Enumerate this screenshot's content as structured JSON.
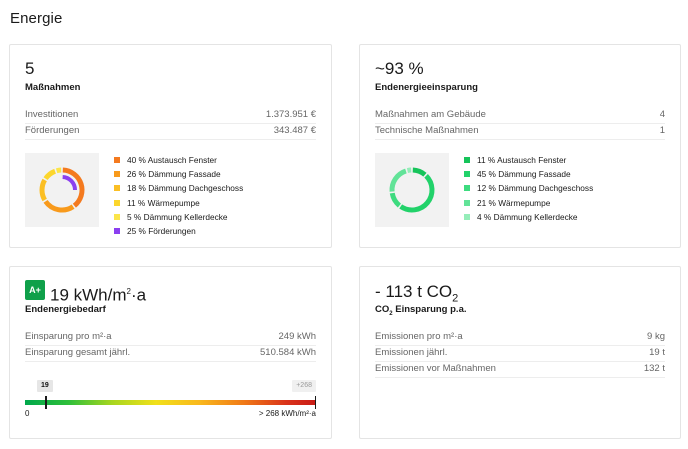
{
  "page": {
    "title": "Energie"
  },
  "measures": {
    "value": "5",
    "label": "Maßnahmen",
    "rows": [
      {
        "label": "Investitionen",
        "value": "1.373.951 €"
      },
      {
        "label": "Förderungen",
        "value": "343.487 €"
      }
    ],
    "legend": [
      {
        "text": "40 % Austausch Fenster",
        "color": "#f47a1f",
        "pct": 40
      },
      {
        "text": "26 % Dämmung Fassade",
        "color": "#f89a1c",
        "pct": 26
      },
      {
        "text": "18 % Dämmung Dachgeschoss",
        "color": "#fbbf24",
        "pct": 18
      },
      {
        "text": "11 % Wärmepumpe",
        "color": "#fcd62c",
        "pct": 11
      },
      {
        "text": "5 % Dämmung Kellerdecke",
        "color": "#fbe54a",
        "pct": 5
      },
      {
        "text": "25 % Förderungen",
        "color": "#8b3ff0",
        "pct": 25
      }
    ]
  },
  "savings": {
    "value": "~93 %",
    "label": "Endenergieeinsparung",
    "rows": [
      {
        "label": "Maßnahmen am Gebäude",
        "value": "4"
      },
      {
        "label": "Technische Maßnahmen",
        "value": "1"
      }
    ],
    "legend": [
      {
        "text": "11 % Austausch Fenster",
        "color": "#16c45a",
        "pct": 11
      },
      {
        "text": "45 % Dämmung Fassade",
        "color": "#22d26a",
        "pct": 45
      },
      {
        "text": "12 % Dämmung Dachgeschoss",
        "color": "#3ddb7f",
        "pct": 12
      },
      {
        "text": "21 % Wärmepumpe",
        "color": "#62e398",
        "pct": 21
      },
      {
        "text": "4 % Dämmung Kellerdecke",
        "color": "#95edb9",
        "pct": 4
      }
    ]
  },
  "demand": {
    "badge": "A+",
    "value": "19 kWh/m",
    "value_sup": "2",
    "value_suffix": "·a",
    "label": "Endenergiebedarf",
    "rows": [
      {
        "label": "Einsparung pro m²·a",
        "value": "249 kWh"
      },
      {
        "label": "Einsparung gesamt jährl.",
        "value": "510.584 kWh"
      }
    ],
    "scale": {
      "current": 19,
      "current_label": "19",
      "max_label": "+268",
      "min_text": "0",
      "max_text": "> 268 kWh/m²·a",
      "max": 268
    }
  },
  "co2": {
    "value": "- 113 t CO",
    "value_sub": "2",
    "label_prefix": "CO",
    "label_sub": "2",
    "label_suffix": " Einsparung p.a.",
    "rows": [
      {
        "label": "Emissionen pro m²·a",
        "value": "9 kg"
      },
      {
        "label": "Emissionen jährl.",
        "value": "19 t"
      },
      {
        "label": "Emissionen vor Maßnahmen",
        "value": "132 t"
      }
    ]
  }
}
